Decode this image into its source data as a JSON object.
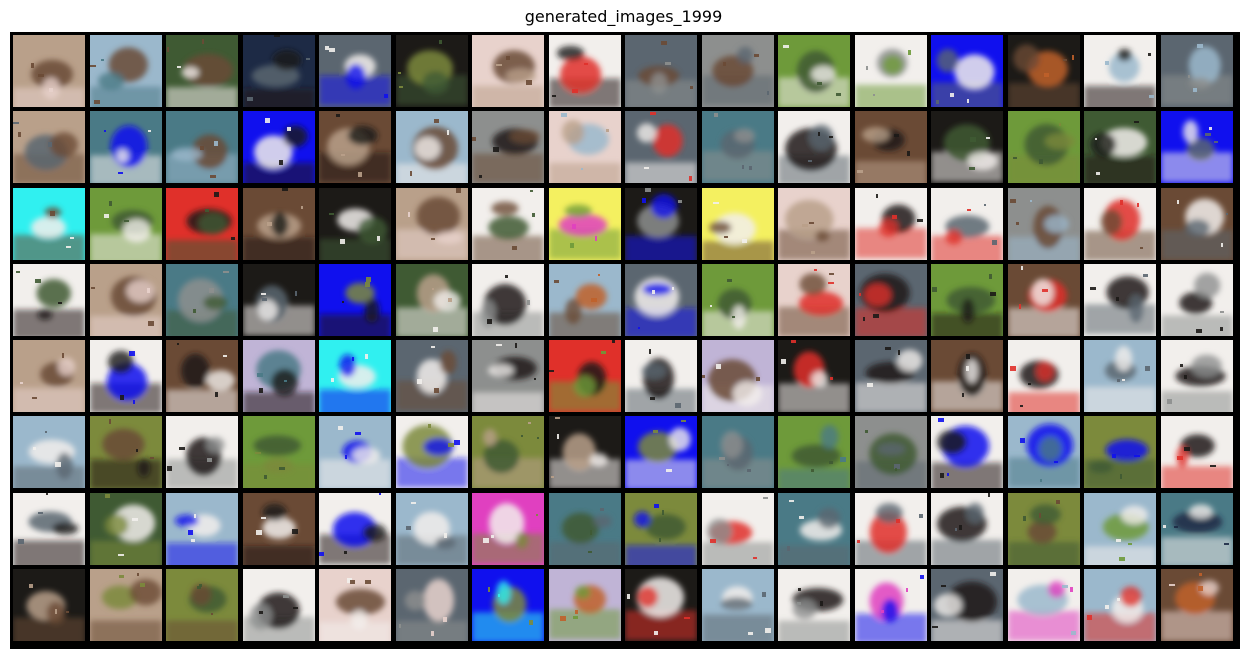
{
  "figure": {
    "title": "generated_images_1999"
  },
  "grid": {
    "rows": 8,
    "cols": 16
  },
  "palette": {
    "white": "#f2efec",
    "pink": "#e8d2cc",
    "tan": "#b9a08a",
    "brown": "#6a4a35",
    "dark": "#1c1a17",
    "forest": "#3f5a33",
    "olive": "#7c8a3c",
    "sky": "#9bb8cc",
    "teal": "#4a7a86",
    "slate": "#5b6670",
    "gray": "#8d8f8e",
    "navy": "#1d2a45",
    "blue": "#1010ee",
    "cyan": "#30f0f0",
    "red": "#e0302a",
    "lilac": "#c0b4d6",
    "yellow": "#f4f060",
    "orange": "#c0602a",
    "green": "#6e9a3a",
    "magenta": "#e040c0"
  },
  "tiles": [
    [
      "tan",
      "brown",
      "pink"
    ],
    [
      "sky",
      "brown",
      "teal"
    ],
    [
      "forest",
      "brown",
      "white"
    ],
    [
      "navy",
      "slate",
      "dark"
    ],
    [
      "slate",
      "white",
      "blue"
    ],
    [
      "dark",
      "olive",
      "forest"
    ],
    [
      "pink",
      "brown",
      "tan"
    ],
    [
      "white",
      "red",
      "dark"
    ],
    [
      "slate",
      "brown",
      "gray"
    ],
    [
      "gray",
      "brown",
      "slate"
    ],
    [
      "green",
      "forest",
      "white"
    ],
    [
      "white",
      "gray",
      "green"
    ],
    [
      "blue",
      "white",
      "slate"
    ],
    [
      "dark",
      "orange",
      "brown"
    ],
    [
      "white",
      "sky",
      "dark"
    ],
    [
      "slate",
      "sky",
      "gray"
    ],
    [
      "tan",
      "slate",
      "brown"
    ],
    [
      "teal",
      "blue",
      "white"
    ],
    [
      "teal",
      "brown",
      "sky"
    ],
    [
      "blue",
      "white",
      "dark"
    ],
    [
      "brown",
      "tan",
      "dark"
    ],
    [
      "sky",
      "brown",
      "white"
    ],
    [
      "gray",
      "dark",
      "brown"
    ],
    [
      "pink",
      "sky",
      "tan"
    ],
    [
      "slate",
      "red",
      "white"
    ],
    [
      "teal",
      "slate",
      "gray"
    ],
    [
      "white",
      "dark",
      "slate"
    ],
    [
      "brown",
      "dark",
      "tan"
    ],
    [
      "dark",
      "forest",
      "white"
    ],
    [
      "green",
      "forest",
      "olive"
    ],
    [
      "forest",
      "white",
      "dark"
    ],
    [
      "blue",
      "slate",
      "white"
    ],
    [
      "cyan",
      "white",
      "brown"
    ],
    [
      "green",
      "forest",
      "white"
    ],
    [
      "red",
      "dark",
      "forest"
    ],
    [
      "brown",
      "tan",
      "dark"
    ],
    [
      "dark",
      "white",
      "forest"
    ],
    [
      "tan",
      "brown",
      "pink"
    ],
    [
      "white",
      "forest",
      "brown"
    ],
    [
      "yellow",
      "magenta",
      "green"
    ],
    [
      "dark",
      "gray",
      "blue"
    ],
    [
      "yellow",
      "white",
      "brown"
    ],
    [
      "pink",
      "tan",
      "brown"
    ],
    [
      "white",
      "dark",
      "red"
    ],
    [
      "white",
      "slate",
      "red"
    ],
    [
      "gray",
      "brown",
      "sky"
    ],
    [
      "white",
      "red",
      "brown"
    ],
    [
      "brown",
      "white",
      "slate"
    ],
    [
      "white",
      "forest",
      "dark"
    ],
    [
      "tan",
      "brown",
      "pink"
    ],
    [
      "teal",
      "gray",
      "forest"
    ],
    [
      "dark",
      "slate",
      "white"
    ],
    [
      "blue",
      "olive",
      "dark"
    ],
    [
      "forest",
      "tan",
      "white"
    ],
    [
      "white",
      "dark",
      "gray"
    ],
    [
      "sky",
      "orange",
      "brown"
    ],
    [
      "slate",
      "white",
      "blue"
    ],
    [
      "green",
      "forest",
      "white"
    ],
    [
      "pink",
      "red",
      "brown"
    ],
    [
      "slate",
      "dark",
      "red"
    ],
    [
      "green",
      "forest",
      "dark"
    ],
    [
      "brown",
      "red",
      "white"
    ],
    [
      "white",
      "dark",
      "slate"
    ],
    [
      "white",
      "dark",
      "gray"
    ],
    [
      "tan",
      "brown",
      "pink"
    ],
    [
      "white",
      "blue",
      "dark"
    ],
    [
      "brown",
      "dark",
      "white"
    ],
    [
      "lilac",
      "teal",
      "dark"
    ],
    [
      "cyan",
      "white",
      "blue"
    ],
    [
      "slate",
      "white",
      "brown"
    ],
    [
      "gray",
      "dark",
      "white"
    ],
    [
      "red",
      "dark",
      "green"
    ],
    [
      "white",
      "dark",
      "slate"
    ],
    [
      "lilac",
      "brown",
      "white"
    ],
    [
      "dark",
      "red",
      "white"
    ],
    [
      "slate",
      "dark",
      "white"
    ],
    [
      "brown",
      "dark",
      "white"
    ],
    [
      "white",
      "dark",
      "red"
    ],
    [
      "sky",
      "slate",
      "white"
    ],
    [
      "white",
      "dark",
      "gray"
    ],
    [
      "sky",
      "white",
      "slate"
    ],
    [
      "olive",
      "brown",
      "dark"
    ],
    [
      "white",
      "dark",
      "gray"
    ],
    [
      "green",
      "forest",
      "olive"
    ],
    [
      "sky",
      "blue",
      "white"
    ],
    [
      "white",
      "olive",
      "blue"
    ],
    [
      "olive",
      "forest",
      "tan"
    ],
    [
      "dark",
      "tan",
      "white"
    ],
    [
      "blue",
      "olive",
      "white"
    ],
    [
      "teal",
      "slate",
      "gray"
    ],
    [
      "green",
      "forest",
      "teal"
    ],
    [
      "gray",
      "forest",
      "slate"
    ],
    [
      "white",
      "blue",
      "dark"
    ],
    [
      "sky",
      "blue",
      "teal"
    ],
    [
      "olive",
      "blue",
      "forest"
    ],
    [
      "white",
      "dark",
      "red"
    ],
    [
      "white",
      "slate",
      "dark"
    ],
    [
      "forest",
      "white",
      "olive"
    ],
    [
      "sky",
      "white",
      "blue"
    ],
    [
      "brown",
      "white",
      "dark"
    ],
    [
      "white",
      "blue",
      "dark"
    ],
    [
      "sky",
      "white",
      "slate"
    ],
    [
      "magenta",
      "white",
      "olive"
    ],
    [
      "teal",
      "forest",
      "slate"
    ],
    [
      "olive",
      "forest",
      "blue"
    ],
    [
      "white",
      "red",
      "gray"
    ],
    [
      "teal",
      "white",
      "slate"
    ],
    [
      "white",
      "red",
      "slate"
    ],
    [
      "white",
      "dark",
      "slate"
    ],
    [
      "olive",
      "brown",
      "forest"
    ],
    [
      "sky",
      "green",
      "white"
    ],
    [
      "teal",
      "navy",
      "white"
    ],
    [
      "dark",
      "tan",
      "brown"
    ],
    [
      "tan",
      "olive",
      "brown"
    ],
    [
      "olive",
      "forest",
      "brown"
    ],
    [
      "white",
      "dark",
      "gray"
    ],
    [
      "pink",
      "brown",
      "white"
    ],
    [
      "slate",
      "pink",
      "gray"
    ],
    [
      "blue",
      "olive",
      "cyan"
    ],
    [
      "lilac",
      "orange",
      "green"
    ],
    [
      "dark",
      "white",
      "red"
    ],
    [
      "sky",
      "white",
      "slate"
    ],
    [
      "white",
      "dark",
      "gray"
    ],
    [
      "white",
      "magenta",
      "blue"
    ],
    [
      "slate",
      "dark",
      "white"
    ],
    [
      "white",
      "sky",
      "magenta"
    ],
    [
      "sky",
      "white",
      "red"
    ],
    [
      "brown",
      "orange",
      "pink"
    ]
  ]
}
